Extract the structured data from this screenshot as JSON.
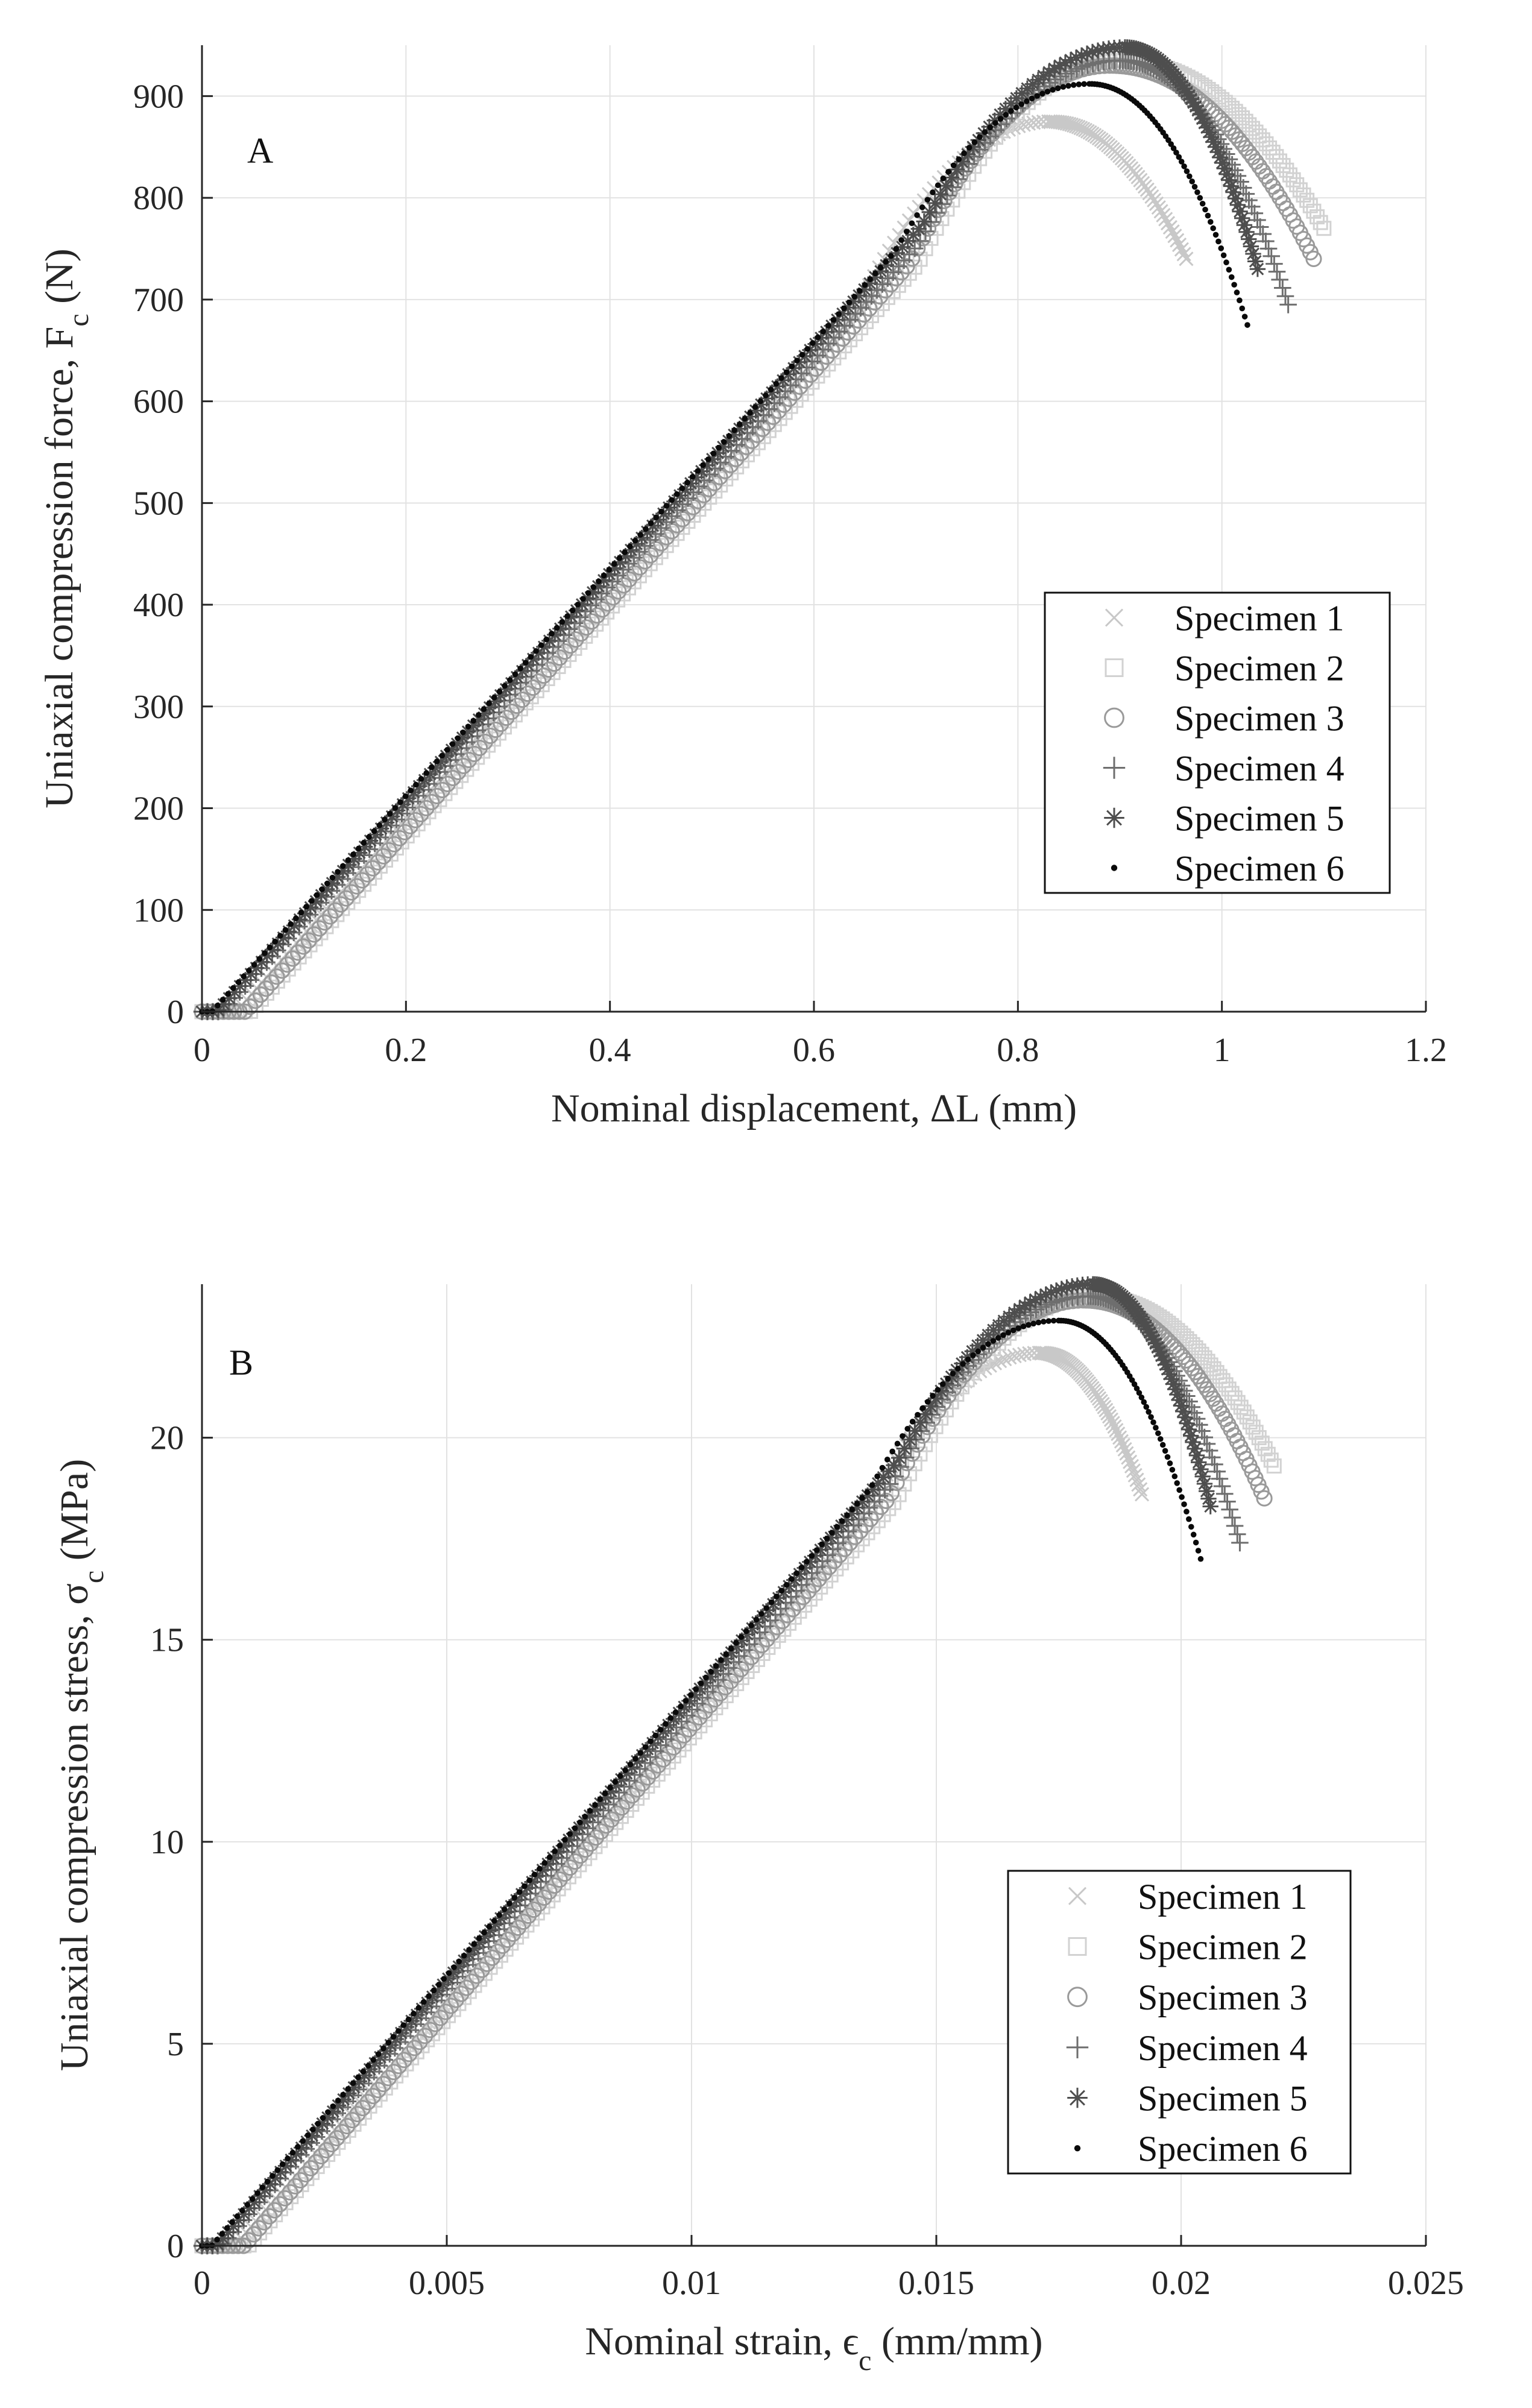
{
  "chart_data": [
    {
      "type": "scatter",
      "panel_label": "A",
      "xlabel": "Nominal displacement,  ΔL (mm)",
      "ylabel_main": "Uniaxial compression force, F",
      "ylabel_sub": "c",
      "ylabel_unit": " (N)",
      "xlim": [
        0,
        1.2
      ],
      "ylim": [
        0,
        950
      ],
      "xticks": [
        0,
        0.2,
        0.4,
        0.6,
        0.8,
        1,
        1.2
      ],
      "xtick_labels": [
        "0",
        "0.2",
        "0.4",
        "0.6",
        "0.8",
        "1",
        "1.2"
      ],
      "yticks": [
        0,
        100,
        200,
        300,
        400,
        500,
        600,
        700,
        800,
        900
      ],
      "ytick_labels": [
        "0",
        "100",
        "200",
        "300",
        "400",
        "500",
        "600",
        "700",
        "800",
        "900"
      ],
      "grid": true,
      "legend_position": "lower-right",
      "series": [
        {
          "name": "Specimen 1",
          "marker": "x",
          "color": "#c8c8c8",
          "peak_x": 0.83,
          "peak_y": 875,
          "end_x": 0.965,
          "end_y": 740,
          "elastic_ratio": 1.0,
          "toe": 0.035
        },
        {
          "name": "Specimen 2",
          "marker": "square",
          "color": "#d2d2d2",
          "peak_x": 0.9,
          "peak_y": 935,
          "end_x": 1.1,
          "end_y": 770,
          "elastic_ratio": 0.985,
          "toe": 0.05
        },
        {
          "name": "Specimen 3",
          "marker": "circle",
          "color": "#9a9a9a",
          "peak_x": 0.89,
          "peak_y": 930,
          "end_x": 1.09,
          "end_y": 740,
          "elastic_ratio": 0.99,
          "toe": 0.045
        },
        {
          "name": "Specimen 4",
          "marker": "plus",
          "color": "#6e6e6e",
          "peak_x": 0.9,
          "peak_y": 935,
          "end_x": 1.065,
          "end_y": 695,
          "elastic_ratio": 1.0,
          "toe": 0.02
        },
        {
          "name": "Specimen 5",
          "marker": "asterisk",
          "color": "#4e4e4e",
          "peak_x": 0.905,
          "peak_y": 948,
          "end_x": 1.035,
          "end_y": 730,
          "elastic_ratio": 1.01,
          "toe": 0.015
        },
        {
          "name": "Specimen 6",
          "marker": "dot",
          "color": "#0a0a0a",
          "peak_x": 0.87,
          "peak_y": 912,
          "end_x": 1.025,
          "end_y": 675,
          "elastic_ratio": 1.012,
          "toe": 0.01
        }
      ]
    },
    {
      "type": "scatter",
      "panel_label": "B",
      "xlabel_main": "Nominal strain,  ϵ",
      "xlabel_sub": "c",
      "xlabel_unit": " (mm/mm)",
      "ylabel_main": "Uniaxial compression stress,  σ",
      "ylabel_sub": "c",
      "ylabel_unit": " (MPa)",
      "xlim": [
        0,
        0.025
      ],
      "ylim": [
        0,
        23.8
      ],
      "xticks": [
        0,
        0.005,
        0.01,
        0.015,
        0.02,
        0.025
      ],
      "xtick_labels": [
        "0",
        "0.005",
        "0.01",
        "0.015",
        "0.02",
        "0.025"
      ],
      "yticks": [
        0,
        5,
        10,
        15,
        20
      ],
      "ytick_labels": [
        "0",
        "5",
        "10",
        "15",
        "20"
      ],
      "grid": true,
      "legend_position": "lower-right",
      "series": [
        {
          "name": "Specimen 1",
          "marker": "x",
          "color": "#c8c8c8",
          "peak_x": 0.0171,
          "peak_y": 22.1,
          "end_x": 0.0192,
          "end_y": 18.6,
          "elastic_ratio": 1.0,
          "toe": 0.0007
        },
        {
          "name": "Specimen 2",
          "marker": "square",
          "color": "#d2d2d2",
          "peak_x": 0.0182,
          "peak_y": 23.5,
          "end_x": 0.0219,
          "end_y": 19.3,
          "elastic_ratio": 0.985,
          "toe": 0.001
        },
        {
          "name": "Specimen 3",
          "marker": "circle",
          "color": "#9a9a9a",
          "peak_x": 0.018,
          "peak_y": 23.4,
          "end_x": 0.0217,
          "end_y": 18.5,
          "elastic_ratio": 0.99,
          "toe": 0.0009
        },
        {
          "name": "Specimen 4",
          "marker": "plus",
          "color": "#6e6e6e",
          "peak_x": 0.0181,
          "peak_y": 23.5,
          "end_x": 0.0212,
          "end_y": 17.4,
          "elastic_ratio": 1.0,
          "toe": 0.0004
        },
        {
          "name": "Specimen 5",
          "marker": "asterisk",
          "color": "#4e4e4e",
          "peak_x": 0.0182,
          "peak_y": 23.8,
          "end_x": 0.0206,
          "end_y": 18.3,
          "elastic_ratio": 1.01,
          "toe": 0.0003
        },
        {
          "name": "Specimen 6",
          "marker": "dot",
          "color": "#0a0a0a",
          "peak_x": 0.0175,
          "peak_y": 22.9,
          "end_x": 0.0204,
          "end_y": 17.0,
          "elastic_ratio": 1.012,
          "toe": 0.0002
        }
      ]
    }
  ]
}
